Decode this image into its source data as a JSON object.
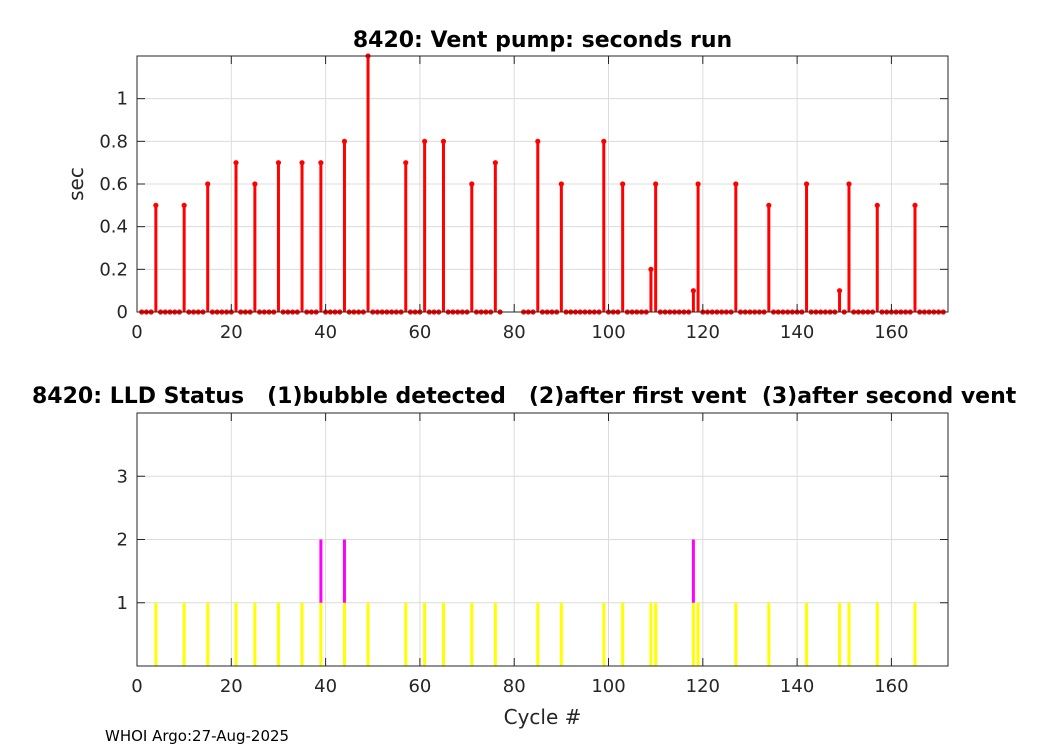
{
  "footer": "WHOI Argo:27-Aug-2025",
  "chart_data": [
    {
      "type": "stem",
      "title": "8420: Vent pump: seconds run",
      "xlabel": "",
      "ylabel": "sec",
      "xlim": [
        0,
        172
      ],
      "ylim": [
        0,
        1.2
      ],
      "xticks": [
        0,
        20,
        40,
        60,
        80,
        100,
        120,
        140,
        160
      ],
      "yticks": [
        0,
        0.2,
        0.4,
        0.6,
        0.8,
        1
      ],
      "grid": true,
      "color": "#ff0000",
      "cycle_range": [
        1,
        171
      ],
      "missing_cycles": [
        78,
        79,
        80,
        81
      ],
      "nonzero": [
        {
          "x": 4,
          "y": 0.5
        },
        {
          "x": 10,
          "y": 0.5
        },
        {
          "x": 15,
          "y": 0.6
        },
        {
          "x": 21,
          "y": 0.7
        },
        {
          "x": 25,
          "y": 0.6
        },
        {
          "x": 30,
          "y": 0.7
        },
        {
          "x": 35,
          "y": 0.7
        },
        {
          "x": 39,
          "y": 0.7
        },
        {
          "x": 44,
          "y": 0.8
        },
        {
          "x": 49,
          "y": 1.2
        },
        {
          "x": 57,
          "y": 0.7
        },
        {
          "x": 61,
          "y": 0.8
        },
        {
          "x": 65,
          "y": 0.8
        },
        {
          "x": 71,
          "y": 0.6
        },
        {
          "x": 76,
          "y": 0.7
        },
        {
          "x": 85,
          "y": 0.8
        },
        {
          "x": 90,
          "y": 0.6
        },
        {
          "x": 99,
          "y": 0.8
        },
        {
          "x": 103,
          "y": 0.6
        },
        {
          "x": 109,
          "y": 0.2
        },
        {
          "x": 110,
          "y": 0.6
        },
        {
          "x": 118,
          "y": 0.1
        },
        {
          "x": 119,
          "y": 0.6
        },
        {
          "x": 127,
          "y": 0.6
        },
        {
          "x": 134,
          "y": 0.5
        },
        {
          "x": 142,
          "y": 0.6
        },
        {
          "x": 149,
          "y": 0.1
        },
        {
          "x": 151,
          "y": 0.6
        },
        {
          "x": 157,
          "y": 0.5
        },
        {
          "x": 165,
          "y": 0.5
        }
      ]
    },
    {
      "type": "bar",
      "title": "8420: LLD Status   (1)bubble detected   (2)after first vent  (3)after second vent",
      "xlabel": "Cycle #",
      "ylabel": "",
      "xlim": [
        0,
        172
      ],
      "ylim": [
        0,
        4
      ],
      "xticks": [
        0,
        20,
        40,
        60,
        80,
        100,
        120,
        140,
        160
      ],
      "yticks": [
        1,
        2,
        3
      ],
      "grid": true,
      "series": [
        {
          "name": "bubble detected",
          "color": "#ffff00",
          "x": [
            4,
            10,
            15,
            21,
            25,
            30,
            35,
            39,
            44,
            49,
            57,
            61,
            65,
            71,
            76,
            85,
            90,
            99,
            103,
            109,
            110,
            118,
            119,
            127,
            134,
            142,
            149,
            151,
            157,
            165
          ],
          "value": 1
        },
        {
          "name": "after first vent",
          "color": "#ff00ff",
          "x": [
            39,
            44,
            118
          ],
          "value": 2
        }
      ]
    }
  ]
}
